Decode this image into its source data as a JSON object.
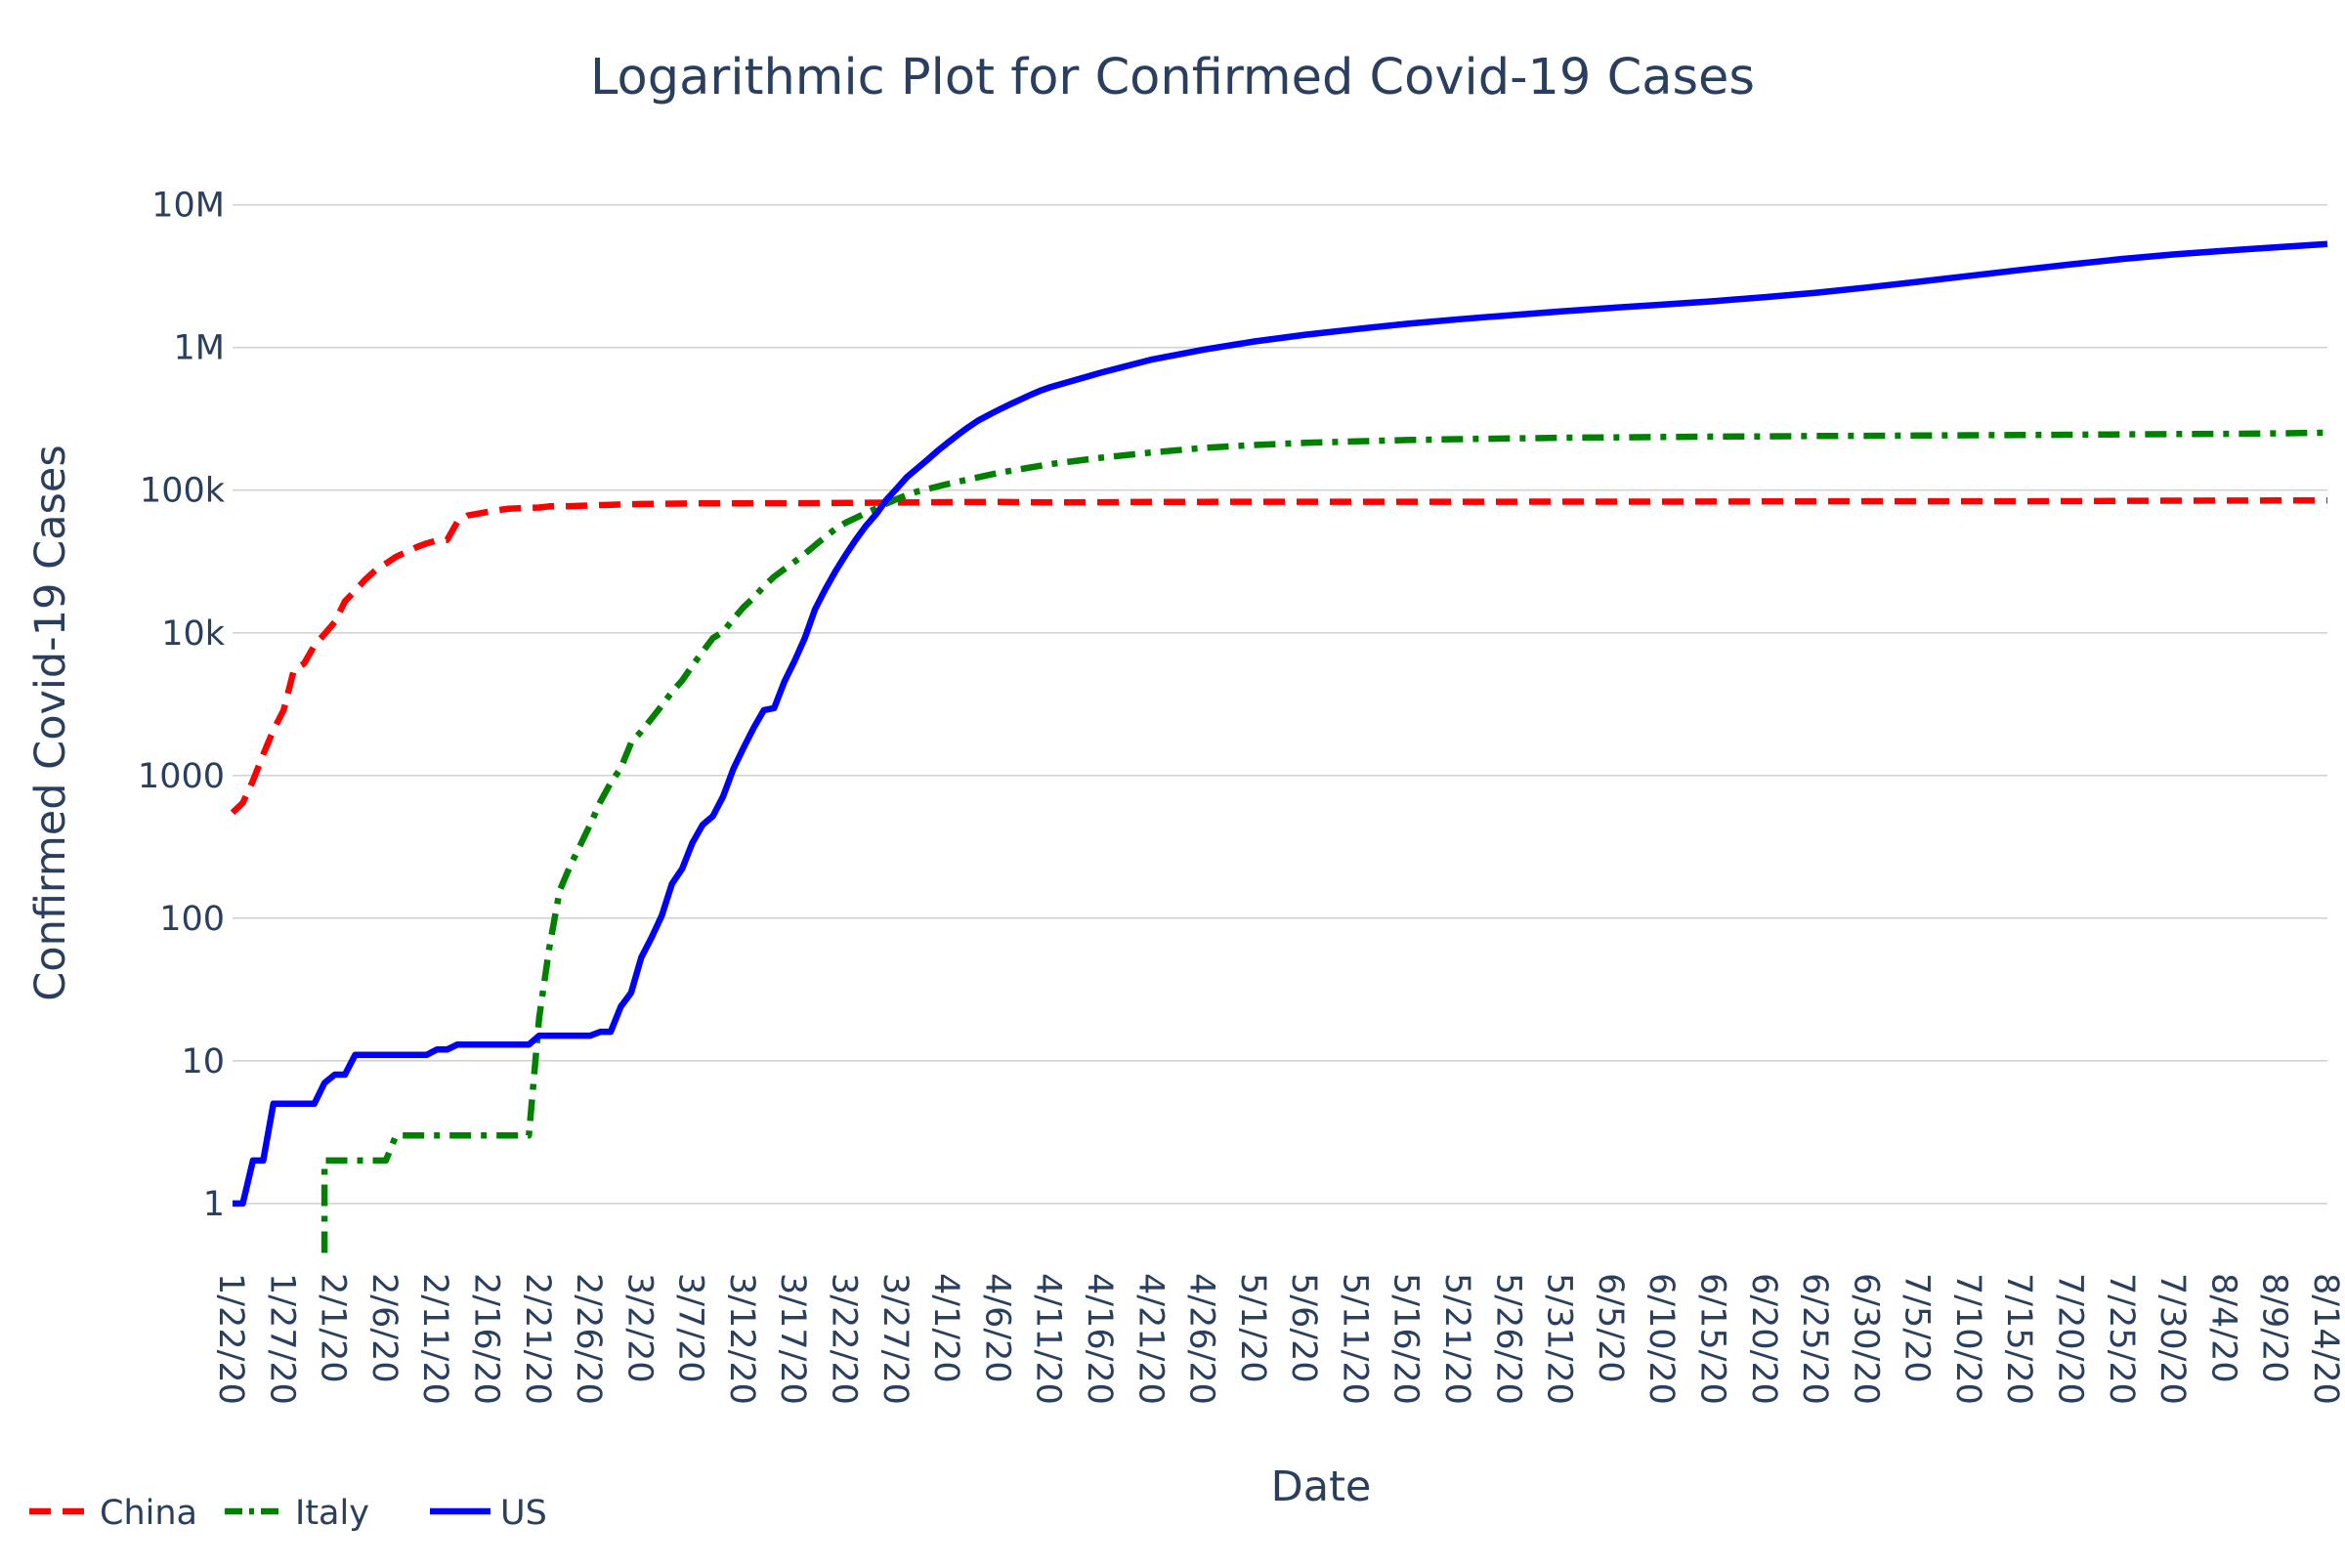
{
  "chart_data": {
    "type": "line",
    "title": "Logarithmic Plot for Confirmed Covid-19 Cases",
    "xlabel": "Date",
    "ylabel": "Confirmed Covid-19 Cases",
    "yscale": "log",
    "ylim": [
      0.4,
      30000000
    ],
    "xlim": [
      "1/22/20",
      "8/14/20"
    ],
    "grid": true,
    "legend_position": "bottom-left",
    "y_ticks": [
      {
        "value": 1,
        "label": "1"
      },
      {
        "value": 10,
        "label": "10"
      },
      {
        "value": 100,
        "label": "100"
      },
      {
        "value": 1000,
        "label": "1000"
      },
      {
        "value": 10000,
        "label": "10k"
      },
      {
        "value": 100000,
        "label": "100k"
      },
      {
        "value": 1000000,
        "label": "1M"
      },
      {
        "value": 10000000,
        "label": "10M"
      }
    ],
    "x_ticks": [
      "1/22/20",
      "1/27/20",
      "2/1/20",
      "2/6/20",
      "2/11/20",
      "2/16/20",
      "2/21/20",
      "2/26/20",
      "3/2/20",
      "3/7/20",
      "3/12/20",
      "3/17/20",
      "3/22/20",
      "3/27/20",
      "4/1/20",
      "4/6/20",
      "4/11/20",
      "4/16/20",
      "4/21/20",
      "4/26/20",
      "5/1/20",
      "5/6/20",
      "5/11/20",
      "5/16/20",
      "5/21/20",
      "5/26/20",
      "5/31/20",
      "6/5/20",
      "6/10/20",
      "6/15/20",
      "6/20/20",
      "6/25/20",
      "6/30/20",
      "7/5/20",
      "7/10/20",
      "7/15/20",
      "7/20/20",
      "7/25/20",
      "7/30/20",
      "8/4/20",
      "8/9/20",
      "8/14/20"
    ],
    "series": [
      {
        "name": "China",
        "color": "#ff0000",
        "dash": "dash",
        "points": [
          [
            "1/22/20",
            548
          ],
          [
            "1/23/20",
            643
          ],
          [
            "1/24/20",
            920
          ],
          [
            "1/25/20",
            1406
          ],
          [
            "1/26/20",
            2075
          ],
          [
            "1/27/20",
            2877
          ],
          [
            "1/28/20",
            5509
          ],
          [
            "1/29/20",
            6087
          ],
          [
            "1/30/20",
            8141
          ],
          [
            "1/31/20",
            9802
          ],
          [
            "2/1/20",
            11891
          ],
          [
            "2/2/20",
            16630
          ],
          [
            "2/3/20",
            19716
          ],
          [
            "2/4/20",
            23707
          ],
          [
            "2/5/20",
            27440
          ],
          [
            "2/6/20",
            30587
          ],
          [
            "2/7/20",
            34110
          ],
          [
            "2/8/20",
            36814
          ],
          [
            "2/9/20",
            39829
          ],
          [
            "2/10/20",
            42354
          ],
          [
            "2/11/20",
            44386
          ],
          [
            "2/12/20",
            44759
          ],
          [
            "2/13/20",
            59895
          ],
          [
            "2/14/20",
            66358
          ],
          [
            "2/15/20",
            68413
          ],
          [
            "2/16/20",
            70513
          ],
          [
            "2/17/20",
            72434
          ],
          [
            "2/18/20",
            74211
          ],
          [
            "2/19/20",
            74619
          ],
          [
            "2/20/20",
            75077
          ],
          [
            "2/21/20",
            75550
          ],
          [
            "2/22/20",
            77001
          ],
          [
            "2/23/20",
            77022
          ],
          [
            "2/24/20",
            77241
          ],
          [
            "2/25/20",
            77754
          ],
          [
            "2/26/20",
            78166
          ],
          [
            "2/27/20",
            78600
          ],
          [
            "2/28/20",
            78928
          ],
          [
            "2/29/20",
            79356
          ],
          [
            "3/2/20",
            80026
          ],
          [
            "3/7/20",
            80770
          ],
          [
            "3/12/20",
            80932
          ],
          [
            "3/17/20",
            81058
          ],
          [
            "3/22/20",
            81397
          ],
          [
            "3/27/20",
            81897
          ],
          [
            "4/1/20",
            82361
          ],
          [
            "4/6/20",
            82665
          ],
          [
            "4/11/20",
            82052
          ],
          [
            "4/16/20",
            82341
          ],
          [
            "4/21/20",
            82788
          ],
          [
            "4/26/20",
            82836
          ],
          [
            "5/1/20",
            82874
          ],
          [
            "5/6/20",
            82883
          ],
          [
            "5/11/20",
            82918
          ],
          [
            "5/16/20",
            82941
          ],
          [
            "5/21/20",
            82967
          ],
          [
            "5/26/20",
            82993
          ],
          [
            "5/31/20",
            83017
          ],
          [
            "6/5/20",
            83030
          ],
          [
            "6/10/20",
            83057
          ],
          [
            "6/15/20",
            83221
          ],
          [
            "6/20/20",
            83378
          ],
          [
            "6/25/20",
            83462
          ],
          [
            "6/30/20",
            83531
          ],
          [
            "7/5/20",
            83557
          ],
          [
            "7/10/20",
            83585
          ],
          [
            "7/15/20",
            83612
          ],
          [
            "7/20/20",
            83693
          ],
          [
            "7/25/20",
            84060
          ],
          [
            "7/30/20",
            84337
          ],
          [
            "8/4/20",
            84491
          ],
          [
            "8/9/20",
            84668
          ],
          [
            "8/14/20",
            84786
          ]
        ]
      },
      {
        "name": "Italy",
        "color": "#008000",
        "dash": "dashdot",
        "points": [
          [
            "1/31/20",
            0.45
          ],
          [
            "1/31/20",
            2
          ],
          [
            "2/1/20",
            2
          ],
          [
            "2/6/20",
            2
          ],
          [
            "2/7/20",
            3
          ],
          [
            "2/11/20",
            3
          ],
          [
            "2/16/20",
            3
          ],
          [
            "2/20/20",
            3
          ],
          [
            "2/21/20",
            20
          ],
          [
            "2/22/20",
            62
          ],
          [
            "2/23/20",
            155
          ],
          [
            "2/24/20",
            229
          ],
          [
            "2/25/20",
            322
          ],
          [
            "2/26/20",
            453
          ],
          [
            "2/27/20",
            655
          ],
          [
            "2/28/20",
            888
          ],
          [
            "2/29/20",
            1128
          ],
          [
            "3/1/20",
            1694
          ],
          [
            "3/2/20",
            2036
          ],
          [
            "3/3/20",
            2502
          ],
          [
            "3/4/20",
            3089
          ],
          [
            "3/5/20",
            3858
          ],
          [
            "3/6/20",
            4636
          ],
          [
            "3/7/20",
            5883
          ],
          [
            "3/8/20",
            7375
          ],
          [
            "3/9/20",
            9172
          ],
          [
            "3/10/20",
            10149
          ],
          [
            "3/11/20",
            12462
          ],
          [
            "3/12/20",
            15113
          ],
          [
            "3/13/20",
            17660
          ],
          [
            "3/14/20",
            21157
          ],
          [
            "3/15/20",
            24747
          ],
          [
            "3/16/20",
            27980
          ],
          [
            "3/17/20",
            31506
          ],
          [
            "3/18/20",
            35713
          ],
          [
            "3/19/20",
            41035
          ],
          [
            "3/20/20",
            47021
          ],
          [
            "3/21/20",
            53578
          ],
          [
            "3/22/20",
            59138
          ],
          [
            "3/23/20",
            63927
          ],
          [
            "3/24/20",
            69176
          ],
          [
            "3/25/20",
            74386
          ],
          [
            "3/26/20",
            80589
          ],
          [
            "3/27/20",
            86498
          ],
          [
            "3/28/20",
            92472
          ],
          [
            "3/29/20",
            97689
          ],
          [
            "3/30/20",
            101739
          ],
          [
            "4/1/20",
            110574
          ],
          [
            "4/6/20",
            132547
          ],
          [
            "4/11/20",
            152271
          ],
          [
            "4/16/20",
            168941
          ],
          [
            "4/21/20",
            183957
          ],
          [
            "4/26/20",
            197675
          ],
          [
            "5/1/20",
            207428
          ],
          [
            "5/6/20",
            214457
          ],
          [
            "5/11/20",
            219814
          ],
          [
            "5/16/20",
            224760
          ],
          [
            "5/21/20",
            228006
          ],
          [
            "5/26/20",
            230555
          ],
          [
            "5/31/20",
            232997
          ],
          [
            "6/5/20",
            234531
          ],
          [
            "6/10/20",
            235763
          ],
          [
            "6/15/20",
            237290
          ],
          [
            "6/20/20",
            238275
          ],
          [
            "6/25/20",
            239706
          ],
          [
            "6/30/20",
            240578
          ],
          [
            "7/5/20",
            241611
          ],
          [
            "7/10/20",
            242639
          ],
          [
            "7/15/20",
            243506
          ],
          [
            "7/20/20",
            244624
          ],
          [
            "7/25/20",
            246118
          ],
          [
            "7/30/20",
            247158
          ],
          [
            "8/4/20",
            248229
          ],
          [
            "8/9/20",
            250103
          ],
          [
            "8/14/20",
            252809
          ]
        ]
      },
      {
        "name": "US",
        "color": "#0000ff",
        "dash": "solid",
        "points": [
          [
            "1/22/20",
            1
          ],
          [
            "1/23/20",
            1
          ],
          [
            "1/24/20",
            2
          ],
          [
            "1/25/20",
            2
          ],
          [
            "1/26/20",
            5
          ],
          [
            "1/27/20",
            5
          ],
          [
            "1/28/20",
            5
          ],
          [
            "1/29/20",
            5
          ],
          [
            "1/30/20",
            5
          ],
          [
            "1/31/20",
            7
          ],
          [
            "2/1/20",
            8
          ],
          [
            "2/2/20",
            8
          ],
          [
            "2/3/20",
            11
          ],
          [
            "2/4/20",
            11
          ],
          [
            "2/5/20",
            11
          ],
          [
            "2/6/20",
            11
          ],
          [
            "2/7/20",
            11
          ],
          [
            "2/8/20",
            11
          ],
          [
            "2/9/20",
            11
          ],
          [
            "2/10/20",
            11
          ],
          [
            "2/11/20",
            12
          ],
          [
            "2/12/20",
            12
          ],
          [
            "2/13/20",
            13
          ],
          [
            "2/14/20",
            13
          ],
          [
            "2/15/20",
            13
          ],
          [
            "2/16/20",
            13
          ],
          [
            "2/17/20",
            13
          ],
          [
            "2/18/20",
            13
          ],
          [
            "2/19/20",
            13
          ],
          [
            "2/20/20",
            13
          ],
          [
            "2/21/20",
            15
          ],
          [
            "2/22/20",
            15
          ],
          [
            "2/23/20",
            15
          ],
          [
            "2/24/20",
            15
          ],
          [
            "2/25/20",
            15
          ],
          [
            "2/26/20",
            15
          ],
          [
            "2/27/20",
            16
          ],
          [
            "2/28/20",
            16
          ],
          [
            "2/29/20",
            24
          ],
          [
            "3/1/20",
            30
          ],
          [
            "3/2/20",
            53
          ],
          [
            "3/3/20",
            73
          ],
          [
            "3/4/20",
            104
          ],
          [
            "3/5/20",
            174
          ],
          [
            "3/6/20",
            222
          ],
          [
            "3/7/20",
            337
          ],
          [
            "3/8/20",
            451
          ],
          [
            "3/9/20",
            519
          ],
          [
            "3/10/20",
            711
          ],
          [
            "3/11/20",
            1109
          ],
          [
            "3/12/20",
            1561
          ],
          [
            "3/13/20",
            2157
          ],
          [
            "3/14/20",
            2870
          ],
          [
            "3/15/20",
            2968
          ],
          [
            "3/16/20",
            4553
          ],
          [
            "3/17/20",
            6344
          ],
          [
            "3/18/20",
            9189
          ],
          [
            "3/19/20",
            14597
          ],
          [
            "3/20/20",
            20164
          ],
          [
            "3/21/20",
            27026
          ],
          [
            "3/22/20",
            35168
          ],
          [
            "3/23/20",
            45117
          ],
          [
            "3/24/20",
            56327
          ],
          [
            "3/25/20",
            68211
          ],
          [
            "3/26/20",
            85781
          ],
          [
            "3/27/20",
            102686
          ],
          [
            "3/28/20",
            123751
          ],
          [
            "3/29/20",
            142103
          ],
          [
            "3/30/20",
            163433
          ],
          [
            "3/31/20",
            188638
          ],
          [
            "4/1/20",
            215300
          ],
          [
            "4/2/20",
            244878
          ],
          [
            "4/3/20",
            276282
          ],
          [
            "4/4/20",
            309016
          ],
          [
            "4/5/20",
            336802
          ],
          [
            "4/6/20",
            366317
          ],
          [
            "4/7/20",
            397121
          ],
          [
            "4/8/20",
            428654
          ],
          [
            "4/9/20",
            462780
          ],
          [
            "4/10/20",
            496535
          ],
          [
            "4/11/20",
            526396
          ],
          [
            "4/16/20",
            667225
          ],
          [
            "4/21/20",
            825041
          ],
          [
            "4/26/20",
            965785
          ],
          [
            "5/1/20",
            1103461
          ],
          [
            "5/6/20",
            1228603
          ],
          [
            "5/11/20",
            1347881
          ],
          [
            "5/16/20",
            1467884
          ],
          [
            "5/21/20",
            1577287
          ],
          [
            "5/26/20",
            1681418
          ],
          [
            "5/31/20",
            1790191
          ],
          [
            "6/5/20",
            1897380
          ],
          [
            "6/10/20",
            2000702
          ],
          [
            "6/15/20",
            2114026
          ],
          [
            "6/20/20",
            2255119
          ],
          [
            "6/25/20",
            2422310
          ],
          [
            "6/30/20",
            2636538
          ],
          [
            "7/5/20",
            2888730
          ],
          [
            "7/10/20",
            3182737
          ],
          [
            "7/15/20",
            3498902
          ],
          [
            "7/20/20",
            3833271
          ],
          [
            "7/25/20",
            4178970
          ],
          [
            "7/30/20",
            4495014
          ],
          [
            "8/4/20",
            4771080
          ],
          [
            "8/9/20",
            5044864
          ],
          [
            "8/14/20",
            5313055
          ]
        ]
      }
    ]
  }
}
